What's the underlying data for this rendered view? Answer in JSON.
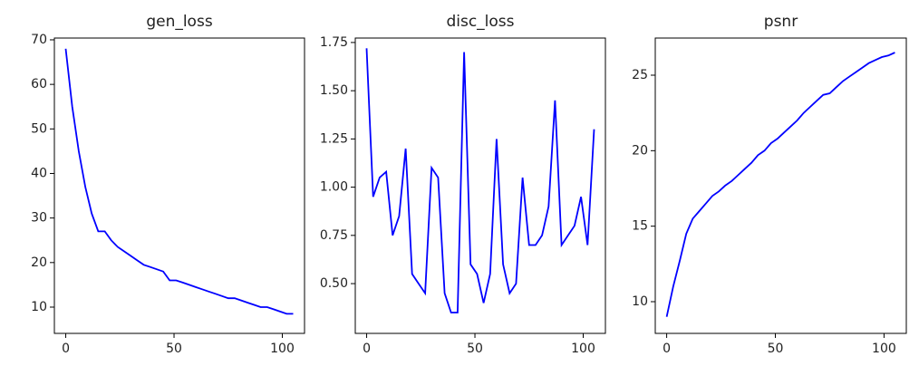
{
  "chart_data": [
    {
      "type": "line",
      "title": "gen_loss",
      "x": [
        0,
        3,
        6,
        9,
        12,
        15,
        18,
        21,
        24,
        27,
        30,
        33,
        36,
        39,
        42,
        45,
        48,
        51,
        54,
        57,
        60,
        63,
        66,
        69,
        72,
        75,
        78,
        81,
        84,
        87,
        90,
        93,
        96,
        99,
        102,
        105
      ],
      "series": [
        {
          "color": "#0000ff",
          "values": [
            68,
            55,
            45,
            37,
            31,
            27,
            27,
            25,
            23.5,
            22.5,
            21.5,
            20.5,
            19.5,
            19,
            18.5,
            18,
            16,
            16,
            15.5,
            15,
            14.5,
            14,
            13.5,
            13,
            12.5,
            12,
            12,
            11.5,
            11,
            10.5,
            10,
            10,
            9.5,
            9,
            8.5,
            8.5
          ]
        }
      ],
      "xlim": [
        -5.25,
        110.25
      ],
      "xticks": [
        0,
        50,
        100
      ],
      "ylim": [
        4.1,
        70.4
      ],
      "yticks": [
        10,
        20,
        30,
        40,
        50,
        60,
        70
      ]
    },
    {
      "type": "line",
      "title": "disc_loss",
      "x": [
        0,
        3,
        6,
        9,
        12,
        15,
        18,
        21,
        24,
        27,
        30,
        33,
        36,
        39,
        42,
        45,
        48,
        51,
        54,
        57,
        60,
        63,
        66,
        69,
        72,
        75,
        78,
        81,
        84,
        87,
        90,
        93,
        96,
        99,
        102,
        105
      ],
      "series": [
        {
          "color": "#0000ff",
          "values": [
            1.72,
            0.95,
            1.05,
            1.08,
            0.75,
            0.85,
            1.2,
            0.55,
            0.5,
            0.45,
            1.1,
            1.05,
            0.45,
            0.35,
            0.35,
            1.7,
            0.6,
            0.55,
            0.4,
            0.55,
            1.25,
            0.6,
            0.45,
            0.5,
            1.05,
            0.7,
            0.7,
            0.75,
            0.9,
            1.45,
            0.7,
            0.75,
            0.8,
            0.95,
            0.7,
            1.3
          ]
        }
      ],
      "xlim": [
        -5.25,
        110.25
      ],
      "xticks": [
        0,
        50,
        100
      ],
      "ylim": [
        0.242,
        1.773
      ],
      "yticks": [
        {
          "value": 0.5,
          "label": "0.50"
        },
        {
          "value": 0.75,
          "label": "0.75"
        },
        {
          "value": 1.0,
          "label": "1.00"
        },
        {
          "value": 1.25,
          "label": "1.25"
        },
        {
          "value": 1.5,
          "label": "1.50"
        },
        {
          "value": 1.75,
          "label": "1.75"
        }
      ]
    },
    {
      "type": "line",
      "title": "psnr",
      "x": [
        0,
        3,
        6,
        9,
        12,
        15,
        18,
        21,
        24,
        27,
        30,
        33,
        36,
        39,
        42,
        45,
        48,
        51,
        54,
        57,
        60,
        63,
        66,
        69,
        72,
        75,
        78,
        81,
        84,
        87,
        90,
        93,
        96,
        99,
        102,
        105
      ],
      "series": [
        {
          "color": "#0000ff",
          "values": [
            9,
            11,
            12.7,
            14.5,
            15.5,
            16,
            16.5,
            17,
            17.3,
            17.7,
            18,
            18.4,
            18.8,
            19.2,
            19.7,
            20,
            20.5,
            20.8,
            21.2,
            21.6,
            22,
            22.5,
            22.9,
            23.3,
            23.7,
            23.8,
            24.2,
            24.6,
            24.9,
            25.2,
            25.5,
            25.8,
            26,
            26.2,
            26.3,
            26.5
          ]
        }
      ],
      "xlim": [
        -5.25,
        110.25
      ],
      "xticks": [
        0,
        50,
        100
      ],
      "ylim": [
        7.9,
        27.46
      ],
      "yticks": [
        10,
        15,
        20,
        25
      ]
    }
  ]
}
